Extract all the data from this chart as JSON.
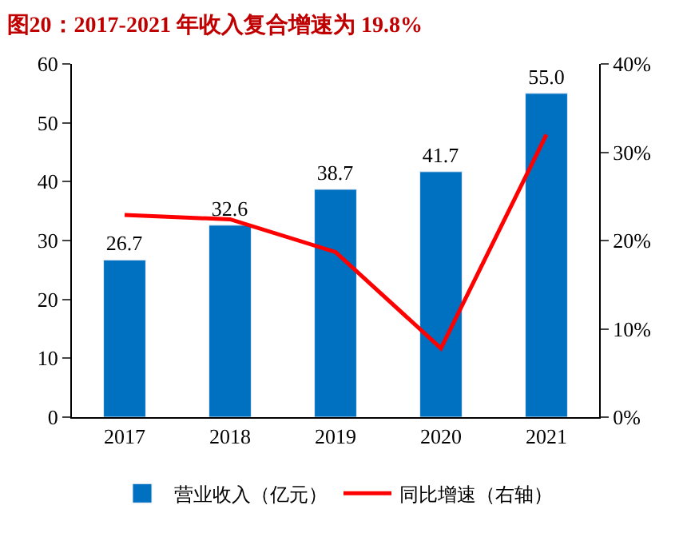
{
  "chart_data": {
    "type": "bar",
    "title": "图20：2017-2021 年收入复合增速为 19.8%",
    "categories": [
      "2017",
      "2018",
      "2019",
      "2020",
      "2021"
    ],
    "series": [
      {
        "name": "营业收入（亿元）",
        "color": "#0070c0",
        "values": [
          26.7,
          32.6,
          38.7,
          41.7,
          55.0
        ],
        "value_labels": [
          "26.7",
          "32.6",
          "38.7",
          "41.7",
          "55.0"
        ]
      },
      {
        "name": "同比增速（右轴）",
        "type": "line",
        "axis": "y2",
        "color": "#ff0000",
        "values": [
          22.9,
          22.4,
          18.7,
          7.8,
          32.0
        ]
      }
    ],
    "ylim": [
      0,
      60
    ],
    "yticks": [
      0,
      10,
      20,
      30,
      40,
      50,
      60
    ],
    "y2lim": [
      0,
      40
    ],
    "y2ticks": [
      {
        "value": 0,
        "label": "0%"
      },
      {
        "value": 10,
        "label": "10%"
      },
      {
        "value": 20,
        "label": "20%"
      },
      {
        "value": 30,
        "label": "30%"
      },
      {
        "value": 40,
        "label": "40%"
      }
    ],
    "legend": "bottom",
    "marker": "none",
    "line_style": "solid"
  }
}
